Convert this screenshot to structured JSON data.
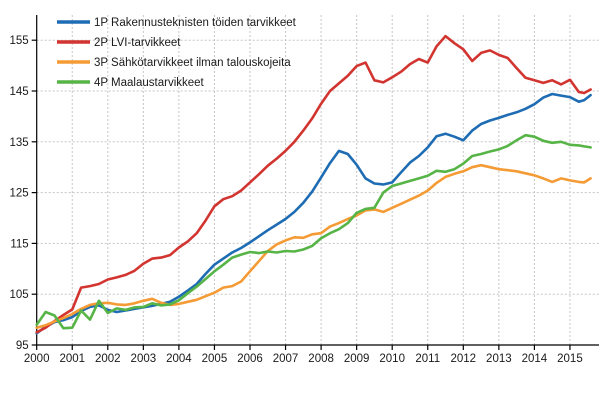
{
  "chart_data": {
    "type": "line",
    "title": "",
    "xlabel": "",
    "ylabel": "",
    "grid": true,
    "legend_position": "top-left-inside",
    "ylim": [
      95,
      155
    ],
    "xlim": [
      2000,
      2015.8
    ],
    "y_ticks": [
      95,
      105,
      115,
      125,
      135,
      145,
      155
    ],
    "x_tick_labels": [
      "2000",
      "2001",
      "2002",
      "2003",
      "2004",
      "2005",
      "2006",
      "2007",
      "2008",
      "2009",
      "2010",
      "2011",
      "2012",
      "2013",
      "2014",
      "2015"
    ],
    "x": [
      2000,
      2000.25,
      2000.5,
      2000.75,
      2001,
      2001.25,
      2001.5,
      2001.75,
      2002,
      2002.25,
      2002.5,
      2002.75,
      2003,
      2003.25,
      2003.5,
      2003.75,
      2004,
      2004.25,
      2004.5,
      2004.75,
      2005,
      2005.25,
      2005.5,
      2005.75,
      2006,
      2006.25,
      2006.5,
      2006.75,
      2007,
      2007.25,
      2007.5,
      2007.75,
      2008,
      2008.25,
      2008.5,
      2008.75,
      2009,
      2009.25,
      2009.5,
      2009.75,
      2010,
      2010.25,
      2010.5,
      2010.75,
      2011,
      2011.25,
      2011.5,
      2011.75,
      2012,
      2012.25,
      2012.5,
      2012.75,
      2013,
      2013.25,
      2013.5,
      2013.75,
      2014,
      2014.25,
      2014.5,
      2014.75,
      2015,
      2015.25,
      2015.4,
      2015.58
    ],
    "series": [
      {
        "name": "1P Rakennusteknisten töiden tarvikkeet",
        "color": "#1e6cb3",
        "values": [
          97.3,
          98.6,
          99.5,
          99.9,
          100.5,
          101.7,
          102.5,
          102.8,
          101.9,
          101.5,
          101.8,
          102.1,
          102.4,
          102.7,
          103.1,
          103.5,
          104.5,
          105.7,
          107.0,
          109.0,
          110.8,
          112.0,
          113.2,
          114.1,
          115.2,
          116.4,
          117.6,
          118.7,
          119.8,
          121.2,
          123.0,
          125.2,
          128.0,
          130.8,
          133.2,
          132.6,
          130.5,
          127.8,
          126.8,
          126.6,
          127.0,
          129.0,
          130.9,
          132.2,
          133.9,
          136.1,
          136.6,
          136.0,
          135.3,
          137.2,
          138.5,
          139.2,
          139.7,
          140.3,
          140.8,
          141.5,
          142.4,
          143.7,
          144.4,
          144.1,
          143.8,
          142.9,
          143.2,
          144.2
        ]
      },
      {
        "name": "2P LVI-tarvikkeet",
        "color": "#d23430",
        "values": [
          97.5,
          98.4,
          99.7,
          100.9,
          102.0,
          106.3,
          106.6,
          107.0,
          107.9,
          108.3,
          108.8,
          109.6,
          111.0,
          112.0,
          112.2,
          112.7,
          114.2,
          115.4,
          117.0,
          119.5,
          122.3,
          123.7,
          124.3,
          125.4,
          127.0,
          128.6,
          130.3,
          131.7,
          133.2,
          135.0,
          137.2,
          139.6,
          142.5,
          145.0,
          146.5,
          148.0,
          149.9,
          150.6,
          147.1,
          146.7,
          147.7,
          148.8,
          150.3,
          151.3,
          150.6,
          153.8,
          155.8,
          154.4,
          153.2,
          150.9,
          152.5,
          153.0,
          152.1,
          151.5,
          149.5,
          147.6,
          147.1,
          146.6,
          147.1,
          146.3,
          147.2,
          144.8,
          144.6,
          145.3
        ]
      },
      {
        "name": "3P Sähkötarvikkeet ilman talouskojeita",
        "color": "#f59b35",
        "values": [
          98.4,
          98.9,
          99.6,
          100.3,
          101.1,
          102.1,
          102.9,
          103.2,
          103.3,
          103.0,
          102.9,
          103.2,
          103.7,
          104.1,
          103.3,
          102.9,
          103.1,
          103.5,
          103.9,
          104.6,
          105.3,
          106.3,
          106.6,
          107.5,
          109.5,
          111.5,
          113.5,
          114.8,
          115.6,
          116.2,
          116.1,
          116.8,
          117.0,
          118.3,
          119.0,
          119.8,
          120.5,
          121.5,
          121.7,
          121.2,
          122.0,
          122.8,
          123.6,
          124.4,
          125.4,
          126.9,
          128.1,
          128.7,
          129.2,
          130.0,
          130.4,
          130.0,
          129.6,
          129.4,
          129.2,
          128.8,
          128.4,
          127.8,
          127.1,
          127.8,
          127.4,
          127.1,
          127.0,
          127.8
        ]
      },
      {
        "name": "4P Maalaustarvikkeet",
        "color": "#57b446",
        "values": [
          99.0,
          101.5,
          100.8,
          98.3,
          98.4,
          101.8,
          100.0,
          103.7,
          101.3,
          102.2,
          101.9,
          102.4,
          102.5,
          103.2,
          102.8,
          103.0,
          103.8,
          105.2,
          106.5,
          108.0,
          109.5,
          110.8,
          112.2,
          112.8,
          113.3,
          113.1,
          113.4,
          113.2,
          113.5,
          113.4,
          113.8,
          114.5,
          116.0,
          117.0,
          117.8,
          119.0,
          121.0,
          121.8,
          122.0,
          125.0,
          126.3,
          126.8,
          127.3,
          127.8,
          128.3,
          129.3,
          129.1,
          129.6,
          130.7,
          132.2,
          132.6,
          133.1,
          133.5,
          134.2,
          135.3,
          136.3,
          136.0,
          135.2,
          134.8,
          135.0,
          134.4,
          134.3,
          134.1,
          133.9
        ]
      }
    ],
    "style": {
      "grid_color": "#c6c6c6",
      "axis_color": "#000000",
      "line_width": 2.6
    }
  }
}
